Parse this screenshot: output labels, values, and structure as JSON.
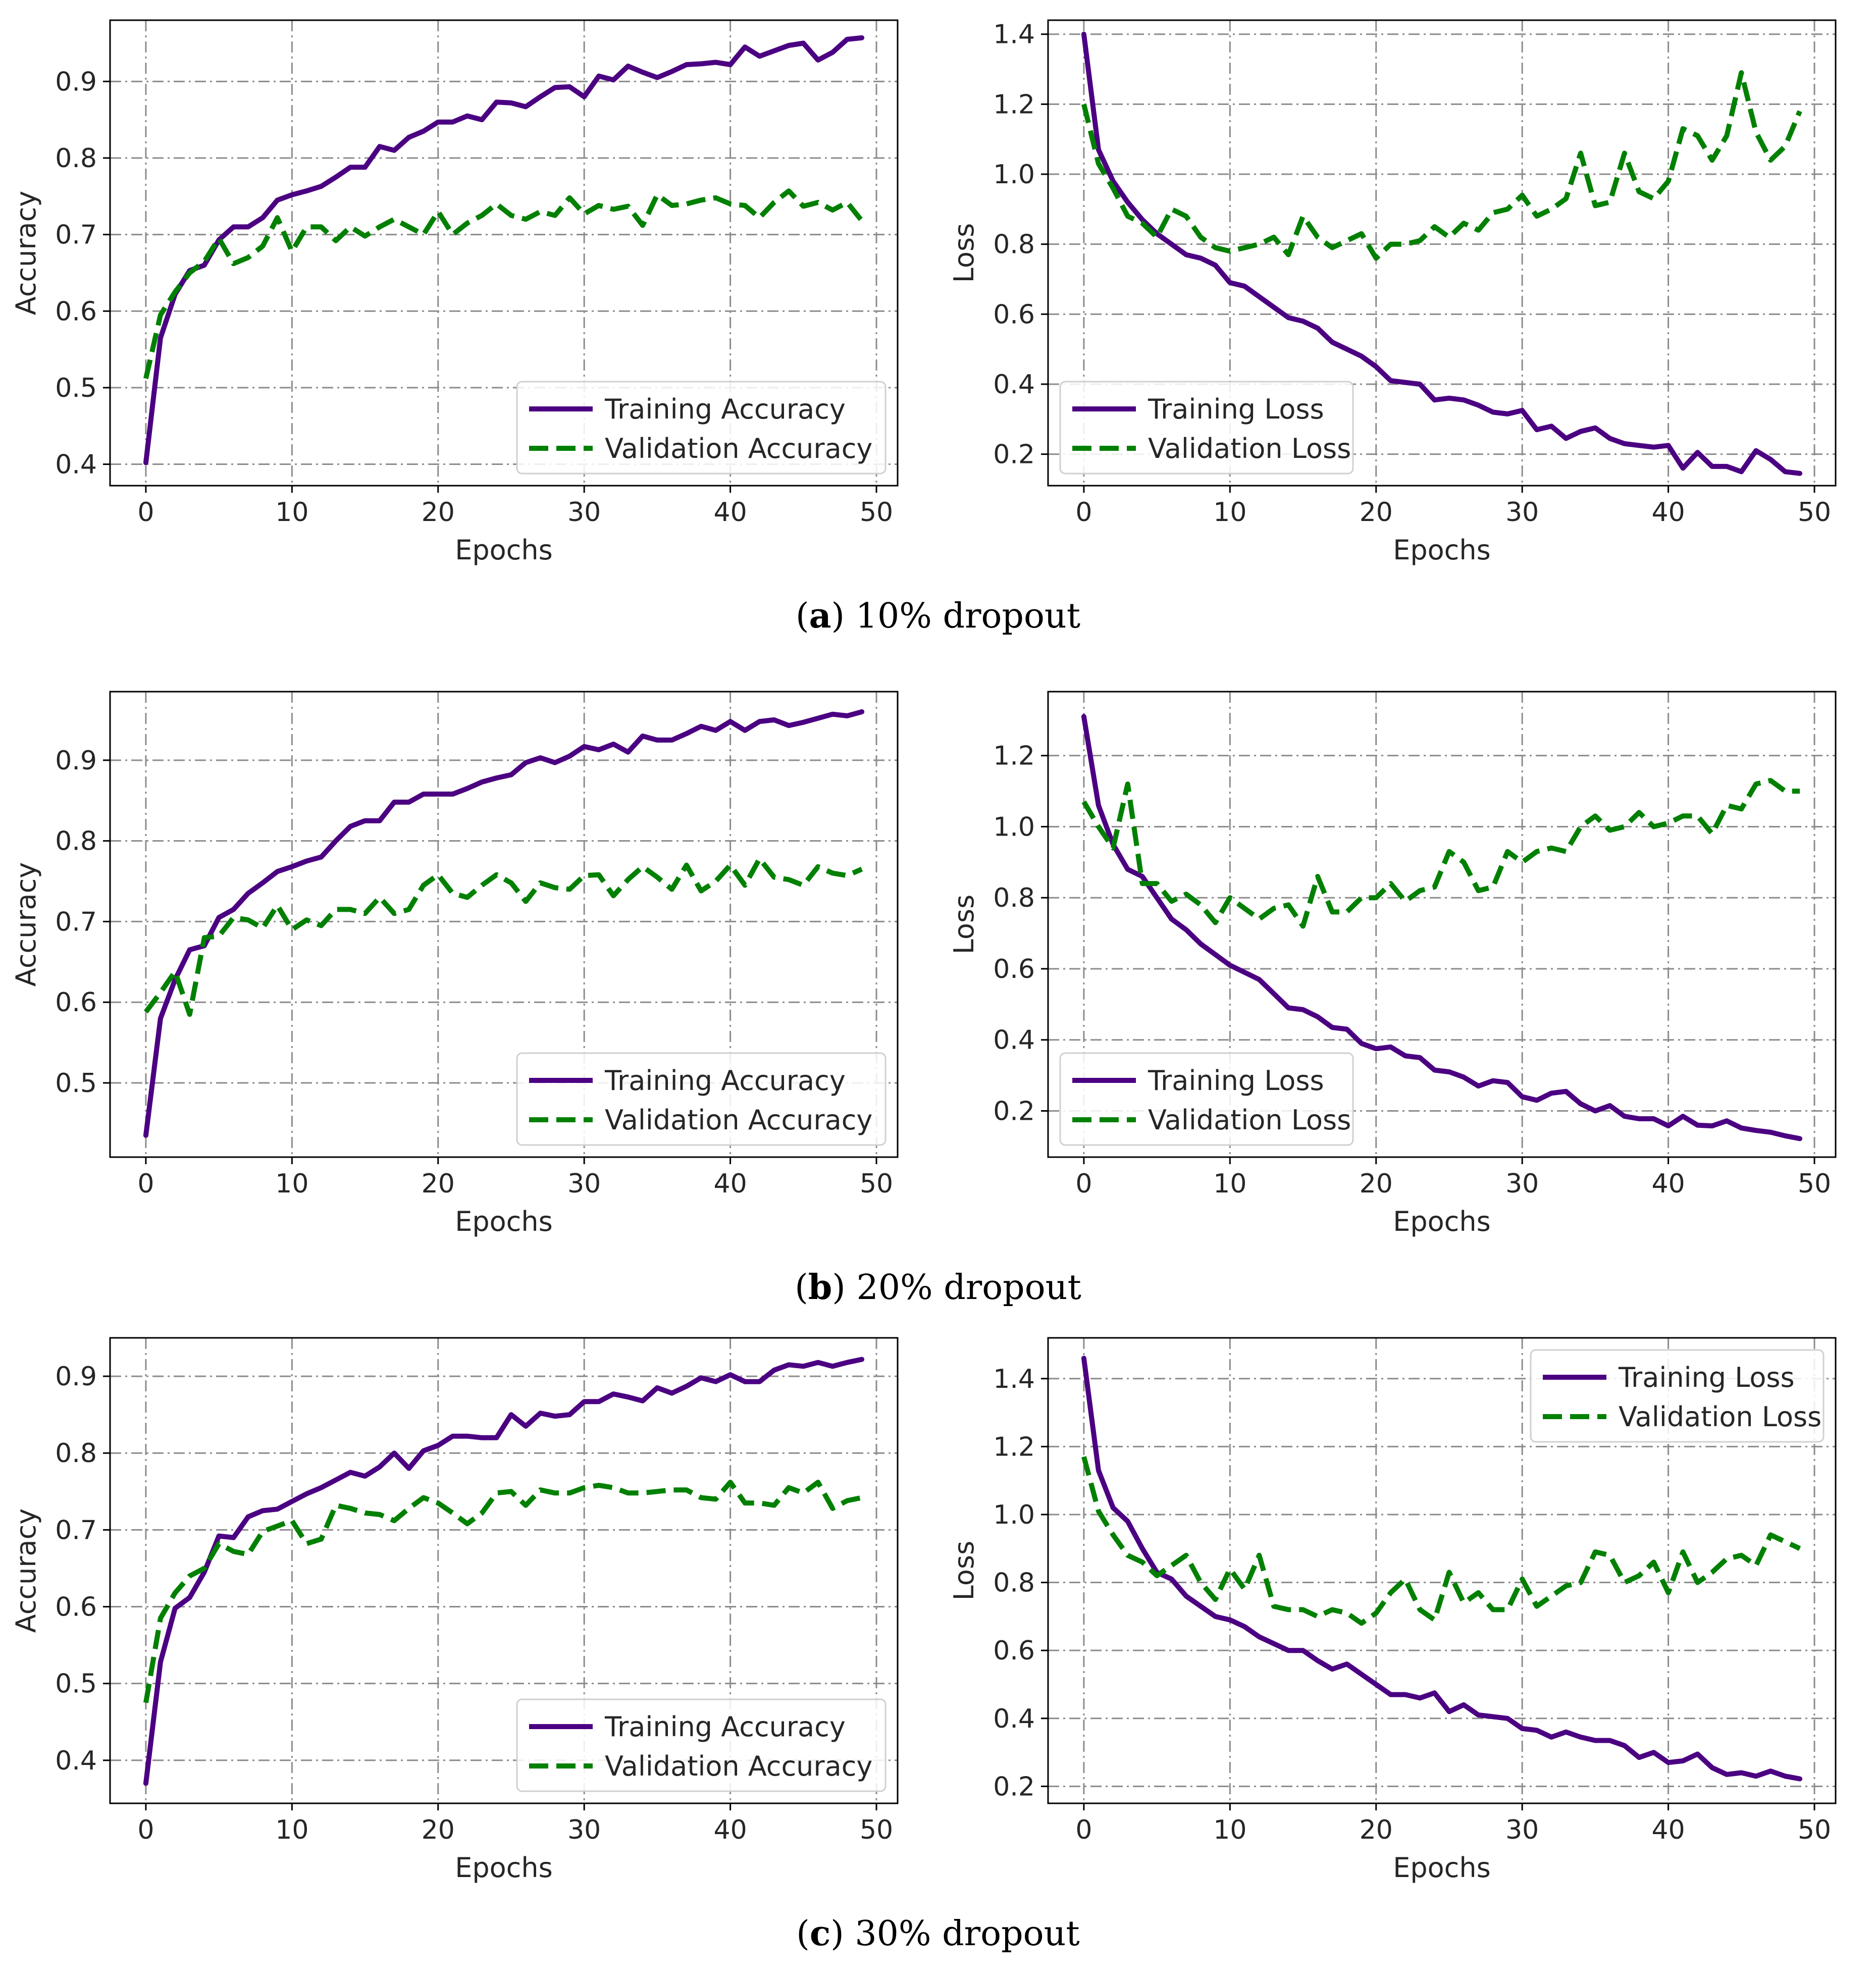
{
  "panels": [
    {
      "caption_letter": "a",
      "caption_text": "10% dropout",
      "accuracy_chart": {
        "type": "line",
        "xlabel": "Epochs",
        "ylabel": "Accuracy",
        "xlim": [
          -2.45,
          51.45
        ],
        "ylim": [
          0.372,
          0.98
        ],
        "xticks": [
          0,
          10,
          20,
          30,
          40,
          50
        ],
        "yticks": [
          0.4,
          0.5,
          0.6,
          0.7,
          0.8,
          0.9
        ],
        "grid": true,
        "legend_position": "lower-right",
        "series": [
          {
            "name": "Training Accuracy",
            "color": "#4b0082",
            "style": "solid",
            "values": [
              0.402,
              0.565,
              0.622,
              0.653,
              0.66,
              0.693,
              0.71,
              0.71,
              0.722,
              0.745,
              0.752,
              0.757,
              0.763,
              0.775,
              0.788,
              0.788,
              0.815,
              0.81,
              0.827,
              0.835,
              0.847,
              0.847,
              0.855,
              0.85,
              0.873,
              0.872,
              0.867,
              0.88,
              0.892,
              0.893,
              0.88,
              0.907,
              0.902,
              0.92,
              0.912,
              0.905,
              0.913,
              0.922,
              0.923,
              0.925,
              0.922,
              0.945,
              0.933,
              0.94,
              0.947,
              0.95,
              0.928,
              0.938,
              0.955,
              0.957
            ]
          },
          {
            "name": "Validation Accuracy",
            "color": "#008000",
            "style": "dashed",
            "values": [
              0.512,
              0.595,
              0.625,
              0.65,
              0.665,
              0.695,
              0.662,
              0.67,
              0.685,
              0.722,
              0.678,
              0.71,
              0.71,
              0.692,
              0.71,
              0.698,
              0.71,
              0.72,
              0.71,
              0.7,
              0.73,
              0.7,
              0.715,
              0.725,
              0.74,
              0.725,
              0.72,
              0.73,
              0.725,
              0.748,
              0.727,
              0.738,
              0.733,
              0.737,
              0.712,
              0.752,
              0.738,
              0.74,
              0.745,
              0.748,
              0.74,
              0.738,
              0.722,
              0.742,
              0.757,
              0.737,
              0.742,
              0.732,
              0.742,
              0.718
            ]
          }
        ]
      },
      "loss_chart": {
        "type": "line",
        "xlabel": "Epochs",
        "ylabel": "Loss",
        "xlim": [
          -2.45,
          51.45
        ],
        "ylim": [
          0.11,
          1.44
        ],
        "xticks": [
          0,
          10,
          20,
          30,
          40,
          50
        ],
        "yticks": [
          0.2,
          0.4,
          0.6,
          0.8,
          1.0,
          1.2,
          1.4
        ],
        "grid": true,
        "legend_position": "lower-left",
        "series": [
          {
            "name": "Training Loss",
            "color": "#4b0082",
            "style": "solid",
            "values": [
              1.4,
              1.07,
              0.98,
              0.92,
              0.87,
              0.83,
              0.8,
              0.77,
              0.76,
              0.74,
              0.69,
              0.68,
              0.65,
              0.62,
              0.59,
              0.58,
              0.56,
              0.52,
              0.5,
              0.48,
              0.45,
              0.41,
              0.405,
              0.4,
              0.355,
              0.36,
              0.355,
              0.34,
              0.32,
              0.315,
              0.325,
              0.27,
              0.28,
              0.245,
              0.265,
              0.275,
              0.245,
              0.23,
              0.225,
              0.22,
              0.225,
              0.16,
              0.205,
              0.165,
              0.165,
              0.15,
              0.21,
              0.185,
              0.15,
              0.145
            ]
          },
          {
            "name": "Validation Loss",
            "color": "#008000",
            "style": "dashed",
            "values": [
              1.2,
              1.03,
              0.96,
              0.88,
              0.86,
              0.82,
              0.9,
              0.88,
              0.82,
              0.79,
              0.78,
              0.79,
              0.8,
              0.82,
              0.77,
              0.88,
              0.82,
              0.79,
              0.81,
              0.83,
              0.76,
              0.8,
              0.8,
              0.81,
              0.85,
              0.82,
              0.86,
              0.84,
              0.89,
              0.9,
              0.94,
              0.88,
              0.9,
              0.93,
              1.06,
              0.91,
              0.92,
              1.06,
              0.95,
              0.93,
              0.98,
              1.13,
              1.11,
              1.04,
              1.11,
              1.29,
              1.12,
              1.04,
              1.08,
              1.18
            ]
          }
        ]
      }
    },
    {
      "caption_letter": "b",
      "caption_text": "20% dropout",
      "accuracy_chart": {
        "type": "line",
        "xlabel": "Epochs",
        "ylabel": "Accuracy",
        "xlim": [
          -2.45,
          51.45
        ],
        "ylim": [
          0.408,
          0.985
        ],
        "xticks": [
          0,
          10,
          20,
          30,
          40,
          50
        ],
        "yticks": [
          0.5,
          0.6,
          0.7,
          0.8,
          0.9
        ],
        "grid": true,
        "legend_position": "lower-right",
        "series": [
          {
            "name": "Training Accuracy",
            "color": "#4b0082",
            "style": "solid",
            "values": [
              0.435,
              0.58,
              0.628,
              0.665,
              0.67,
              0.705,
              0.715,
              0.735,
              0.748,
              0.762,
              0.768,
              0.775,
              0.78,
              0.8,
              0.818,
              0.825,
              0.825,
              0.848,
              0.848,
              0.858,
              0.858,
              0.858,
              0.865,
              0.873,
              0.878,
              0.882,
              0.897,
              0.903,
              0.897,
              0.905,
              0.917,
              0.913,
              0.92,
              0.91,
              0.93,
              0.925,
              0.925,
              0.933,
              0.942,
              0.937,
              0.948,
              0.937,
              0.948,
              0.95,
              0.943,
              0.947,
              0.952,
              0.957,
              0.955,
              0.96
            ]
          },
          {
            "name": "Validation Accuracy",
            "color": "#008000",
            "style": "dashed",
            "values": [
              0.588,
              0.612,
              0.638,
              0.585,
              0.68,
              0.682,
              0.705,
              0.702,
              0.692,
              0.72,
              0.69,
              0.702,
              0.695,
              0.715,
              0.715,
              0.71,
              0.73,
              0.71,
              0.715,
              0.745,
              0.758,
              0.735,
              0.73,
              0.745,
              0.758,
              0.748,
              0.725,
              0.748,
              0.742,
              0.74,
              0.757,
              0.758,
              0.732,
              0.752,
              0.768,
              0.755,
              0.74,
              0.77,
              0.738,
              0.75,
              0.77,
              0.745,
              0.778,
              0.755,
              0.752,
              0.745,
              0.768,
              0.76,
              0.757,
              0.765
            ]
          }
        ]
      },
      "loss_chart": {
        "type": "line",
        "xlabel": "Epochs",
        "ylabel": "Loss",
        "xlim": [
          -2.45,
          51.45
        ],
        "ylim": [
          0.07,
          1.38
        ],
        "xticks": [
          0,
          10,
          20,
          30,
          40,
          50
        ],
        "yticks": [
          0.2,
          0.4,
          0.6,
          0.8,
          1.0,
          1.2
        ],
        "grid": true,
        "legend_position": "lower-left",
        "series": [
          {
            "name": "Training Loss",
            "color": "#4b0082",
            "style": "solid",
            "values": [
              1.31,
              1.06,
              0.95,
              0.88,
              0.86,
              0.8,
              0.74,
              0.71,
              0.67,
              0.64,
              0.61,
              0.59,
              0.57,
              0.53,
              0.49,
              0.485,
              0.465,
              0.435,
              0.43,
              0.39,
              0.375,
              0.38,
              0.355,
              0.35,
              0.315,
              0.31,
              0.295,
              0.27,
              0.285,
              0.28,
              0.24,
              0.23,
              0.25,
              0.255,
              0.22,
              0.2,
              0.215,
              0.185,
              0.178,
              0.178,
              0.158,
              0.185,
              0.16,
              0.158,
              0.172,
              0.152,
              0.145,
              0.14,
              0.13,
              0.122
            ]
          },
          {
            "name": "Validation Loss",
            "color": "#008000",
            "style": "dashed",
            "values": [
              1.07,
              1.0,
              0.94,
              1.12,
              0.84,
              0.84,
              0.79,
              0.81,
              0.78,
              0.73,
              0.8,
              0.77,
              0.74,
              0.77,
              0.78,
              0.72,
              0.86,
              0.76,
              0.76,
              0.8,
              0.8,
              0.84,
              0.79,
              0.82,
              0.83,
              0.93,
              0.9,
              0.82,
              0.83,
              0.93,
              0.9,
              0.93,
              0.94,
              0.93,
              1.0,
              1.03,
              0.99,
              1.0,
              1.04,
              1.0,
              1.01,
              1.03,
              1.03,
              0.98,
              1.06,
              1.05,
              1.12,
              1.13,
              1.1,
              1.1
            ]
          }
        ]
      }
    },
    {
      "caption_letter": "c",
      "caption_text": "30% dropout",
      "accuracy_chart": {
        "type": "line",
        "xlabel": "Epochs",
        "ylabel": "Accuracy",
        "xlim": [
          -2.45,
          51.45
        ],
        "ylim": [
          0.344,
          0.95
        ],
        "xticks": [
          0,
          10,
          20,
          30,
          40,
          50
        ],
        "yticks": [
          0.4,
          0.5,
          0.6,
          0.7,
          0.8,
          0.9
        ],
        "grid": true,
        "legend_position": "lower-right",
        "series": [
          {
            "name": "Training Accuracy",
            "color": "#4b0082",
            "style": "solid",
            "values": [
              0.37,
              0.528,
              0.598,
              0.612,
              0.645,
              0.692,
              0.69,
              0.717,
              0.725,
              0.727,
              0.737,
              0.747,
              0.755,
              0.765,
              0.775,
              0.77,
              0.782,
              0.8,
              0.78,
              0.803,
              0.81,
              0.822,
              0.822,
              0.82,
              0.82,
              0.85,
              0.835,
              0.852,
              0.848,
              0.85,
              0.867,
              0.867,
              0.877,
              0.873,
              0.868,
              0.885,
              0.878,
              0.887,
              0.898,
              0.893,
              0.902,
              0.893,
              0.893,
              0.908,
              0.915,
              0.913,
              0.918,
              0.913,
              0.918,
              0.922
            ]
          },
          {
            "name": "Validation Accuracy",
            "color": "#008000",
            "style": "dashed",
            "values": [
              0.475,
              0.585,
              0.618,
              0.64,
              0.65,
              0.682,
              0.672,
              0.668,
              0.698,
              0.705,
              0.712,
              0.682,
              0.688,
              0.732,
              0.728,
              0.722,
              0.72,
              0.712,
              0.728,
              0.742,
              0.735,
              0.722,
              0.708,
              0.722,
              0.748,
              0.75,
              0.732,
              0.752,
              0.748,
              0.748,
              0.755,
              0.758,
              0.755,
              0.748,
              0.748,
              0.75,
              0.752,
              0.752,
              0.742,
              0.74,
              0.762,
              0.735,
              0.735,
              0.732,
              0.755,
              0.748,
              0.762,
              0.728,
              0.738,
              0.742
            ]
          }
        ]
      },
      "loss_chart": {
        "type": "line",
        "xlabel": "Epochs",
        "ylabel": "Loss",
        "xlim": [
          -2.45,
          51.45
        ],
        "ylim": [
          0.15,
          1.52
        ],
        "xticks": [
          0,
          10,
          20,
          30,
          40,
          50
        ],
        "yticks": [
          0.2,
          0.4,
          0.6,
          0.8,
          1.0,
          1.2,
          1.4
        ],
        "grid": true,
        "legend_position": "upper-right",
        "series": [
          {
            "name": "Training Loss",
            "color": "#4b0082",
            "style": "solid",
            "values": [
              1.46,
              1.13,
              1.02,
              0.98,
              0.9,
              0.83,
              0.81,
              0.76,
              0.73,
              0.7,
              0.69,
              0.67,
              0.64,
              0.62,
              0.6,
              0.6,
              0.57,
              0.545,
              0.56,
              0.53,
              0.5,
              0.47,
              0.47,
              0.46,
              0.475,
              0.42,
              0.44,
              0.41,
              0.405,
              0.4,
              0.37,
              0.365,
              0.345,
              0.36,
              0.345,
              0.335,
              0.335,
              0.32,
              0.285,
              0.3,
              0.27,
              0.275,
              0.295,
              0.255,
              0.235,
              0.24,
              0.23,
              0.245,
              0.23,
              0.222
            ]
          },
          {
            "name": "Validation Loss",
            "color": "#008000",
            "style": "dashed",
            "values": [
              1.17,
              1.01,
              0.94,
              0.88,
              0.86,
              0.82,
              0.85,
              0.88,
              0.8,
              0.75,
              0.84,
              0.78,
              0.88,
              0.73,
              0.72,
              0.72,
              0.7,
              0.72,
              0.71,
              0.68,
              0.71,
              0.77,
              0.81,
              0.72,
              0.69,
              0.83,
              0.74,
              0.77,
              0.72,
              0.72,
              0.81,
              0.73,
              0.76,
              0.79,
              0.8,
              0.89,
              0.88,
              0.8,
              0.82,
              0.86,
              0.77,
              0.89,
              0.8,
              0.83,
              0.87,
              0.88,
              0.85,
              0.94,
              0.92,
              0.9
            ]
          }
        ]
      }
    }
  ]
}
